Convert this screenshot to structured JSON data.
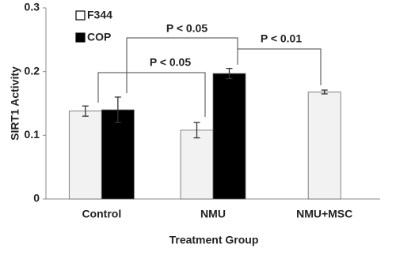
{
  "chart_data": {
    "type": "bar",
    "categories": [
      "Control",
      "NMU",
      "NMU+MSC"
    ],
    "series": [
      {
        "name": "F344",
        "color": "#f2f2f2",
        "values": [
          0.138,
          0.108,
          0.168
        ],
        "errors": [
          0.008,
          0.012,
          0.003
        ]
      },
      {
        "name": "COP",
        "color": "#000000",
        "values": [
          0.14,
          0.197,
          null
        ],
        "errors": [
          0.02,
          0.008,
          null
        ]
      }
    ],
    "xlabel": "Treatment Group",
    "ylabel": "SIRT1 Activity",
    "ylim": [
      0,
      0.3
    ],
    "yticks": [
      0,
      0.1,
      0.2,
      0.3
    ],
    "annotations": [
      "P < 0.05",
      "P < 0.05",
      "P < 0.01"
    ],
    "legend": "upper left"
  }
}
